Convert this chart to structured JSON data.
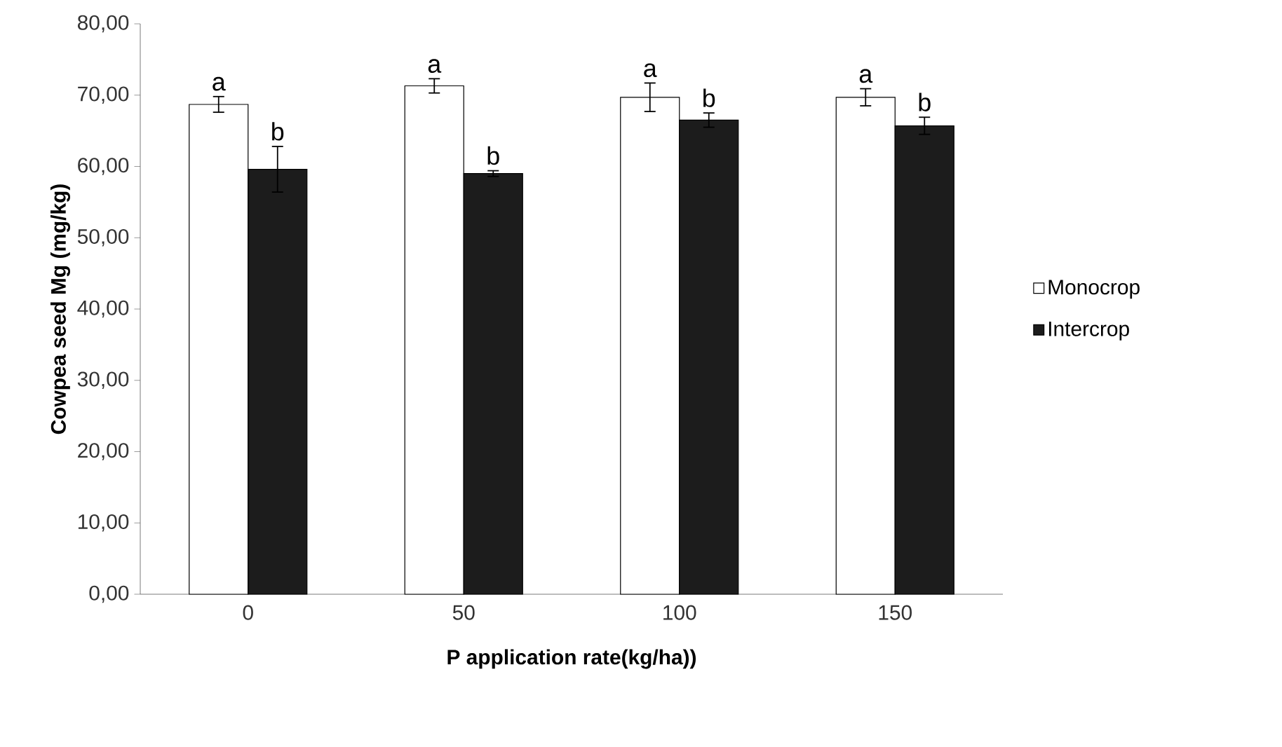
{
  "chart_data": {
    "type": "bar",
    "xlabel": "P application rate(kg/ha))",
    "ylabel": "Cowpea seed Mg (mg/kg)",
    "categories": [
      "0",
      "50",
      "100",
      "150"
    ],
    "series": [
      {
        "name": "Monocrop",
        "color": "#ffffff",
        "values": [
          68.7,
          71.3,
          69.7,
          69.7
        ],
        "errors": [
          1.1,
          1.0,
          2.0,
          1.2
        ]
      },
      {
        "name": "Intercrop",
        "color": "#1c1c1c",
        "values": [
          59.6,
          59.0,
          66.5,
          65.7
        ],
        "errors": [
          3.2,
          0.4,
          1.0,
          1.2
        ]
      }
    ],
    "ylim": [
      0,
      80
    ],
    "yticks": [
      {
        "value": 0,
        "label": "0,00"
      },
      {
        "value": 10,
        "label": "10,00"
      },
      {
        "value": 20,
        "label": "20,00"
      },
      {
        "value": 30,
        "label": "30,00"
      },
      {
        "value": 40,
        "label": "40,00"
      },
      {
        "value": 50,
        "label": "50,00"
      },
      {
        "value": 60,
        "label": "60,00"
      },
      {
        "value": 70,
        "label": "70,00"
      },
      {
        "value": 80,
        "label": "80,00"
      }
    ],
    "annotations": [
      {
        "text": "a",
        "x": "0",
        "y": 68.7
      },
      {
        "text": "b",
        "x": "0",
        "y": 59.6
      },
      {
        "text": "a",
        "x": "50",
        "y": 71.3
      },
      {
        "text": "b",
        "x": "50",
        "y": 59.0
      },
      {
        "text": "a",
        "x": "100",
        "y": 69.7
      },
      {
        "text": "b",
        "x": "100",
        "y": 66.5
      },
      {
        "text": "a",
        "x": "150",
        "y": 69.7
      },
      {
        "text": "b",
        "x": "150",
        "y": 65.7
      }
    ],
    "legend": "right",
    "grid": false
  }
}
